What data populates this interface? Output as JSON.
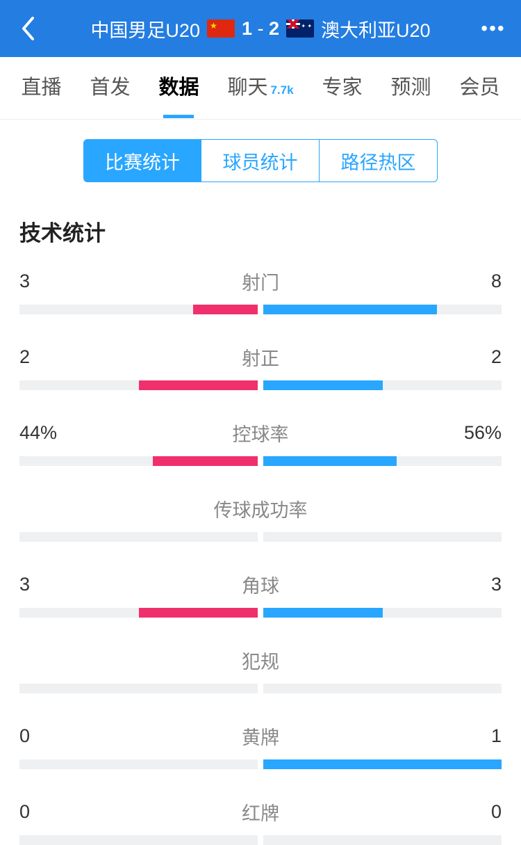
{
  "header": {
    "team_home": "中国男足U20",
    "team_away": "澳大利亚U20",
    "score_home": "1",
    "score_away": "2",
    "score_sep": " - "
  },
  "tabs": {
    "items": [
      {
        "label": "直播",
        "active": false
      },
      {
        "label": "首发",
        "active": false
      },
      {
        "label": "数据",
        "active": true
      },
      {
        "label": "聊天",
        "active": false,
        "badge": "7.7k"
      },
      {
        "label": "专家",
        "active": false
      },
      {
        "label": "预测",
        "active": false
      },
      {
        "label": "会员",
        "active": false
      }
    ]
  },
  "sub_tabs": {
    "items": [
      {
        "label": "比赛统计",
        "active": true
      },
      {
        "label": "球员统计",
        "active": false
      },
      {
        "label": "路径热区",
        "active": false
      }
    ]
  },
  "section_title": "技术统计",
  "colors": {
    "home": "#f0306d",
    "away": "#29a6ff",
    "track": "#eef0f2"
  },
  "stats": [
    {
      "name": "射门",
      "home_label": "3",
      "away_label": "8",
      "home_pct": 27,
      "away_pct": 73
    },
    {
      "name": "射正",
      "home_label": "2",
      "away_label": "2",
      "home_pct": 50,
      "away_pct": 50
    },
    {
      "name": "控球率",
      "home_label": "44%",
      "away_label": "56%",
      "home_pct": 44,
      "away_pct": 56
    },
    {
      "name": "传球成功率",
      "home_label": "",
      "away_label": "",
      "home_pct": 0,
      "away_pct": 0
    },
    {
      "name": "角球",
      "home_label": "3",
      "away_label": "3",
      "home_pct": 50,
      "away_pct": 50
    },
    {
      "name": "犯规",
      "home_label": "",
      "away_label": "",
      "home_pct": 0,
      "away_pct": 0
    },
    {
      "name": "黄牌",
      "home_label": "0",
      "away_label": "1",
      "home_pct": 0,
      "away_pct": 100
    },
    {
      "name": "红牌",
      "home_label": "0",
      "away_label": "0",
      "home_pct": 0,
      "away_pct": 0
    }
  ]
}
